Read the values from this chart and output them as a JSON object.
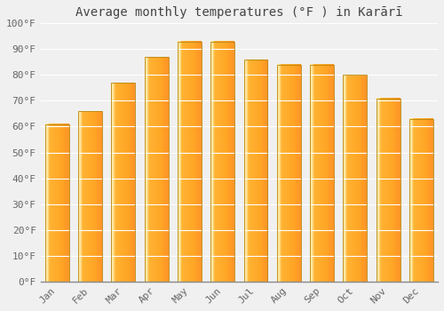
{
  "title": "Average monthly temperatures (°F ) in Karārī",
  "months": [
    "Jan",
    "Feb",
    "Mar",
    "Apr",
    "May",
    "Jun",
    "Jul",
    "Aug",
    "Sep",
    "Oct",
    "Nov",
    "Dec"
  ],
  "values": [
    61,
    66,
    77,
    87,
    93,
    93,
    86,
    84,
    84,
    80,
    71,
    63
  ],
  "bar_color_main": "#FFA500",
  "bar_color_light": "#FFD060",
  "bar_color_highlight": "#FFE090",
  "bar_edge_color": "#CC8800",
  "background_color": "#F0F0F0",
  "grid_color": "#FFFFFF",
  "ylim": [
    0,
    100
  ],
  "ytick_step": 10,
  "title_fontsize": 10,
  "tick_fontsize": 8,
  "ylabel_format": "{0}°F"
}
